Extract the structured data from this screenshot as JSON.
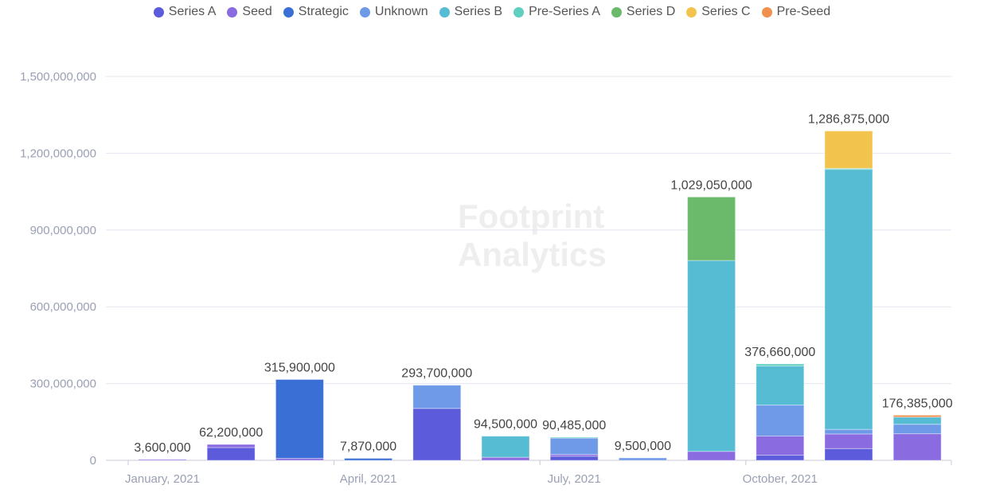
{
  "chart_data": {
    "type": "bar",
    "stacked": true,
    "watermark": "Footprint Analytics",
    "ylim": [
      0,
      1500000000
    ],
    "yticks": [
      "0",
      "300,000,000",
      "600,000,000",
      "900,000,000",
      "1,200,000,000",
      "1,500,000,000"
    ],
    "ytick_values": [
      0,
      300000000,
      600000000,
      900000000,
      1200000000,
      1500000000
    ],
    "xtick_labels": [
      {
        "index": 0,
        "label": "January, 2021"
      },
      {
        "index": 3,
        "label": "April, 2021"
      },
      {
        "index": 6,
        "label": "July, 2021"
      },
      {
        "index": 9,
        "label": "October, 2021"
      }
    ],
    "categories": [
      "2021-01",
      "2021-02",
      "2021-03",
      "2021-04",
      "2021-05",
      "2021-06",
      "2021-07",
      "2021-08",
      "2021-09",
      "2021-10",
      "2021-11",
      "2021-12"
    ],
    "totals_labels": [
      "3,600,000",
      "62,200,000",
      "315,900,000",
      "7,870,000",
      "293,700,000",
      "94,500,000",
      "90,485,000",
      "9,500,000",
      "1,029,050,000",
      "376,660,000",
      "1,286,875,000",
      "176,385,000"
    ],
    "series": [
      {
        "name": "Series A",
        "color": "#5b5bdc",
        "values": [
          0,
          50000000,
          0,
          0,
          203000000,
          0,
          16000000,
          0,
          0,
          20000000,
          46000000,
          0
        ]
      },
      {
        "name": "Seed",
        "color": "#8b6be0",
        "values": [
          3600000,
          12200000,
          8000000,
          0,
          0,
          12000000,
          7000000,
          0,
          35000000,
          75000000,
          57000000,
          104000000
        ]
      },
      {
        "name": "Strategic",
        "color": "#3a6fd6",
        "values": [
          0,
          0,
          307900000,
          7870000,
          0,
          0,
          0,
          0,
          0,
          0,
          0,
          0
        ]
      },
      {
        "name": "Unknown",
        "color": "#6f9ae8",
        "values": [
          0,
          0,
          0,
          0,
          90700000,
          0,
          64000000,
          9500000,
          0,
          121000000,
          18000000,
          37000000
        ]
      },
      {
        "name": "Series B",
        "color": "#56bcd4",
        "values": [
          0,
          0,
          0,
          0,
          0,
          82500000,
          0,
          0,
          746000000,
          153000000,
          1016000000,
          28000000
        ]
      },
      {
        "name": "Pre-Series A",
        "color": "#5fd0c0",
        "values": [
          0,
          0,
          0,
          0,
          0,
          0,
          3485000,
          0,
          0,
          7660000,
          4000000,
          0
        ]
      },
      {
        "name": "Series D",
        "color": "#6bb96b",
        "values": [
          0,
          0,
          0,
          0,
          0,
          0,
          0,
          0,
          248050000,
          0,
          0,
          0
        ]
      },
      {
        "name": "Series C",
        "color": "#f2c44e",
        "values": [
          0,
          0,
          0,
          0,
          0,
          0,
          0,
          0,
          0,
          0,
          145875000,
          0
        ]
      },
      {
        "name": "Pre-Seed",
        "color": "#f0904e",
        "values": [
          0,
          0,
          0,
          0,
          0,
          0,
          0,
          0,
          0,
          0,
          0,
          7385000
        ]
      }
    ]
  }
}
